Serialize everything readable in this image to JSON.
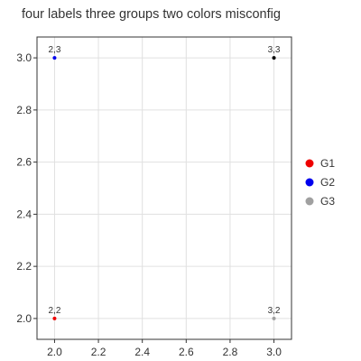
{
  "title": "four labels three groups two colors misconfig",
  "chart_data": {
    "type": "scatter",
    "title": "four labels three groups two colors misconfig",
    "xlabel": "",
    "ylabel": "",
    "xlim": [
      1.92,
      3.08
    ],
    "ylim": [
      1.92,
      3.08
    ],
    "grid": true,
    "legend_position": "right",
    "x_ticks": [
      "2.0",
      "2.2",
      "2.4",
      "2.6",
      "2.8",
      "3.0"
    ],
    "y_ticks": [
      "2.0",
      "2.2",
      "2.4",
      "2.6",
      "2.8",
      "3.0"
    ],
    "legend": [
      {
        "name": "G1",
        "color": "#ee0000"
      },
      {
        "name": "G2",
        "color": "#0000ee"
      },
      {
        "name": "G3",
        "color": "#a0a0a0"
      }
    ],
    "points": [
      {
        "x": 2,
        "y": 3,
        "label": "2,3",
        "color": "#0000ee"
      },
      {
        "x": 3,
        "y": 3,
        "label": "3,3",
        "color": "#000000"
      },
      {
        "x": 2,
        "y": 2,
        "label": "2,2",
        "color": "#ee0000"
      },
      {
        "x": 3,
        "y": 2,
        "label": "3,2",
        "color": "#a0a0a0"
      }
    ]
  }
}
